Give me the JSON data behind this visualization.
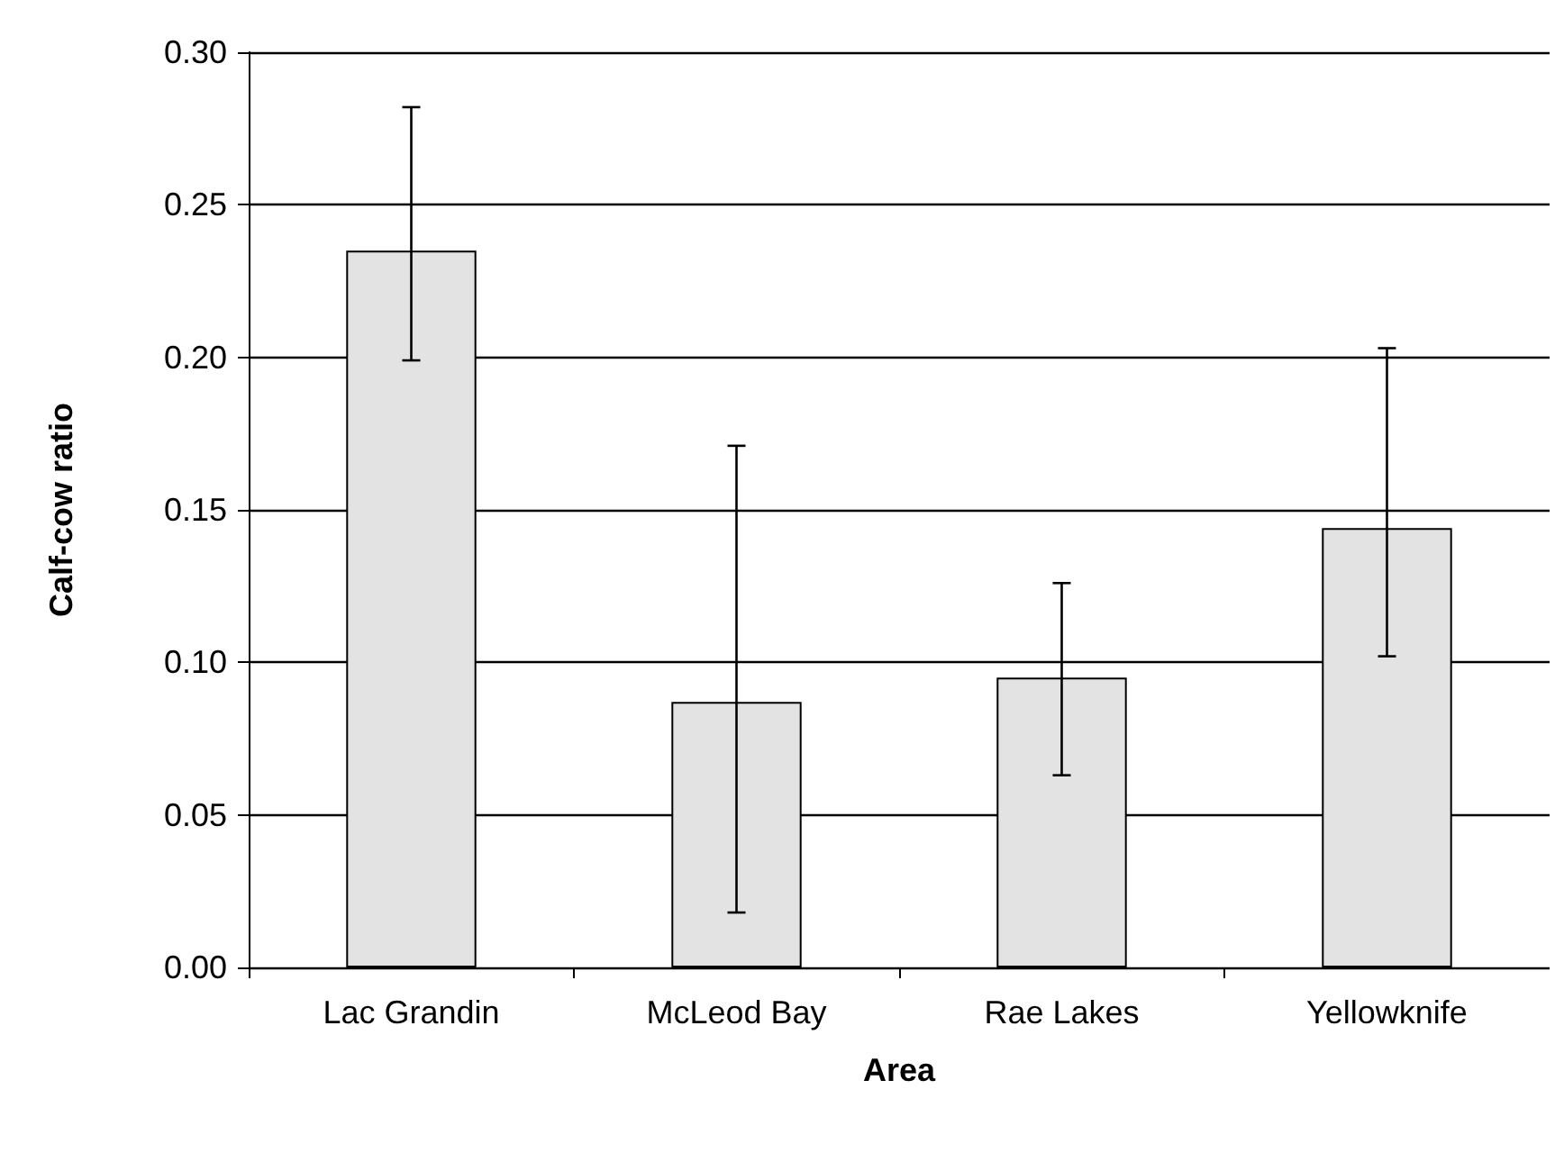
{
  "chart_data": {
    "type": "bar",
    "xlabel": "Area",
    "ylabel": "Calf-cow ratio",
    "categories": [
      "Lac Grandin",
      "McLeod Bay",
      "Rae Lakes",
      "Yellowknife"
    ],
    "values": [
      0.235,
      0.087,
      0.095,
      0.144
    ],
    "errors": [
      [
        0.199,
        0.282
      ],
      [
        0.018,
        0.171
      ],
      [
        0.063,
        0.126
      ],
      [
        0.102,
        0.203
      ]
    ],
    "color": "#e3e3e3",
    "ylim": [
      0,
      0.3
    ],
    "yticks": [
      {
        "value": 0,
        "label": "0.00"
      },
      {
        "value": 0.05,
        "label": "0.05"
      },
      {
        "value": 0.1,
        "label": "0.10"
      },
      {
        "value": 0.15,
        "label": "0.15"
      },
      {
        "value": 0.2,
        "label": "0.20"
      },
      {
        "value": 0.25,
        "label": "0.25"
      },
      {
        "value": 0.3,
        "label": "0.30"
      }
    ],
    "grid": "y"
  }
}
